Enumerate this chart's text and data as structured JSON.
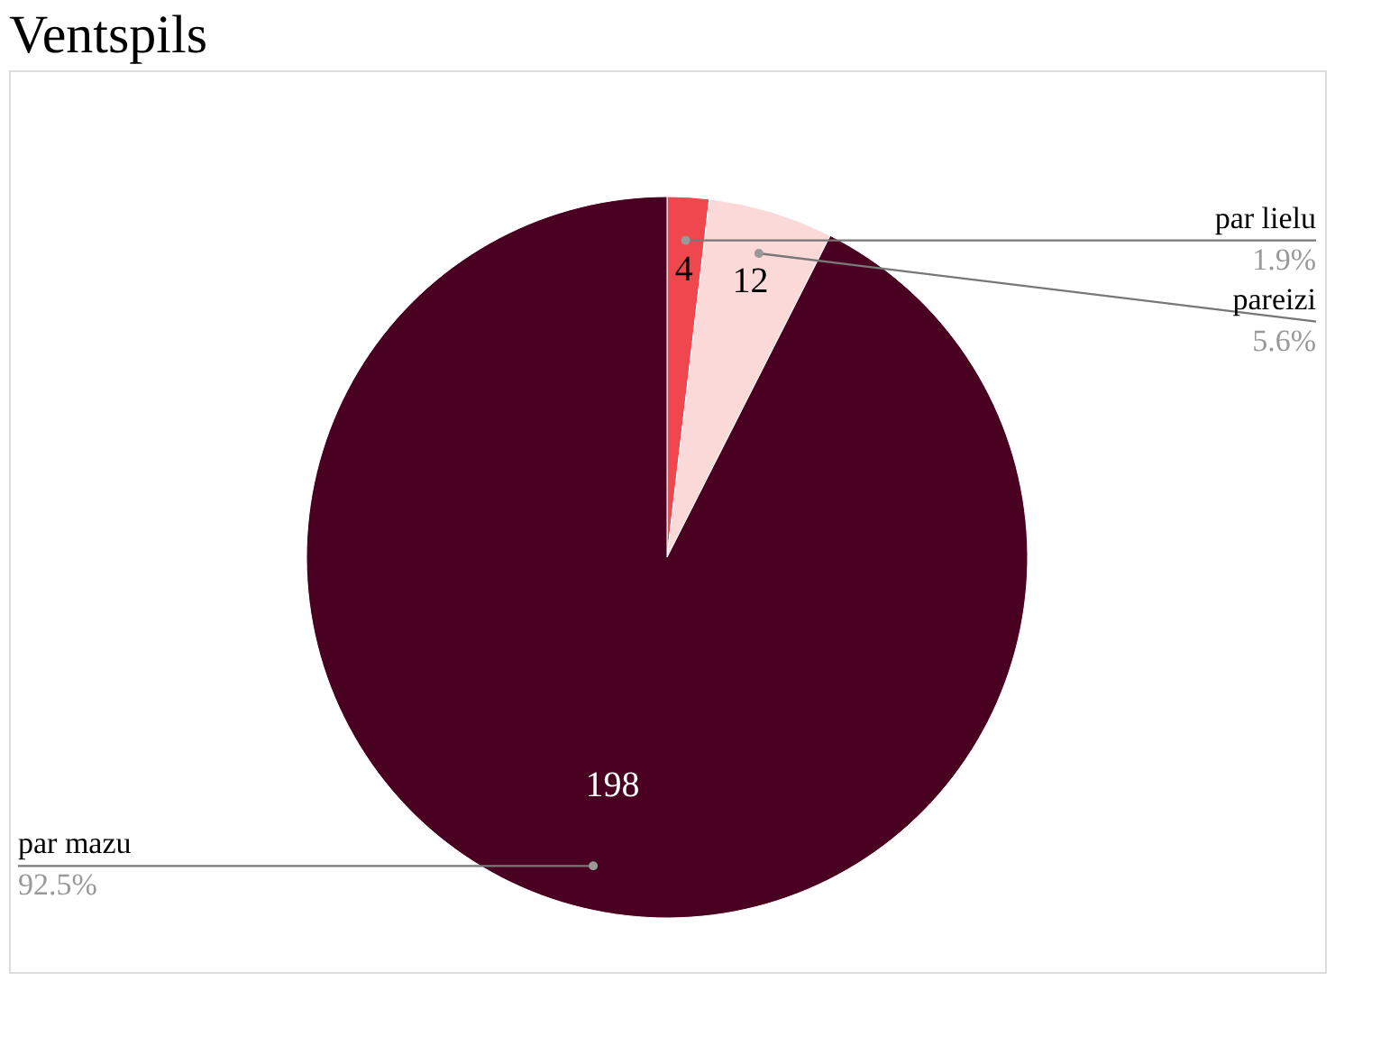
{
  "chart_data": {
    "type": "pie",
    "title": "Ventspils",
    "categories": [
      "par lielu",
      "pareizi",
      "par mazu"
    ],
    "values": [
      4,
      12,
      198
    ],
    "colors": [
      "#f0474f",
      "#fcd9d9",
      "#4a0020"
    ],
    "data_labels": true,
    "annotations": [
      "1.9%",
      "5.6%",
      "92.5%"
    ]
  }
}
